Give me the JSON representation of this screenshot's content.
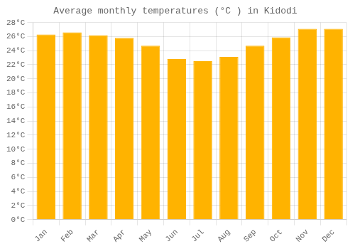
{
  "chart_data": {
    "type": "bar",
    "title": "Average monthly temperatures (°C ) in Kidodi",
    "categories": [
      "Jan",
      "Feb",
      "Mar",
      "Apr",
      "May",
      "Jun",
      "Jul",
      "Aug",
      "Sep",
      "Oct",
      "Nov",
      "Dec"
    ],
    "values": [
      26.3,
      26.6,
      26.2,
      25.8,
      24.7,
      22.8,
      22.5,
      23.1,
      24.7,
      25.9,
      27.1,
      27.1
    ],
    "color": "#FFB300",
    "ylim": [
      0,
      28
    ],
    "yticks": [
      {
        "value": 0,
        "label": "0°C"
      },
      {
        "value": 2,
        "label": "2°C"
      },
      {
        "value": 4,
        "label": "4°C"
      },
      {
        "value": 6,
        "label": "6°C"
      },
      {
        "value": 8,
        "label": "8°C"
      },
      {
        "value": 10,
        "label": "10°C"
      },
      {
        "value": 12,
        "label": "12°C"
      },
      {
        "value": 14,
        "label": "14°C"
      },
      {
        "value": 16,
        "label": "16°C"
      },
      {
        "value": 18,
        "label": "18°C"
      },
      {
        "value": 20,
        "label": "20°C"
      },
      {
        "value": 22,
        "label": "22°C"
      },
      {
        "value": 24,
        "label": "24°C"
      },
      {
        "value": 26,
        "label": "26°C"
      },
      {
        "value": 28,
        "label": "28°C"
      }
    ],
    "grid": true
  }
}
